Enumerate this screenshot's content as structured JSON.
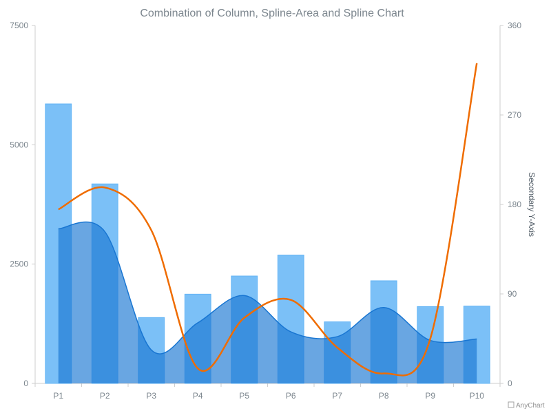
{
  "chart_data": {
    "type": "combination",
    "title": "Combination of Column, Spline-Area and Spline Chart",
    "categories": [
      "P1",
      "P2",
      "P3",
      "P4",
      "P5",
      "P6",
      "P7",
      "P8",
      "P9",
      "P10"
    ],
    "primary_y": {
      "min": 0,
      "max": 7500,
      "ticks": [
        0,
        2500,
        5000,
        7500
      ]
    },
    "secondary_y": {
      "title": "Secondary Y-Axis",
      "min": 0,
      "max": 360,
      "ticks": [
        0,
        90,
        180,
        270,
        360
      ]
    },
    "series": [
      {
        "type": "column",
        "axis": "primary",
        "values": [
          5856,
          4180,
          1380,
          1870,
          2250,
          2690,
          1290,
          2150,
          1610,
          1620
        ]
      },
      {
        "type": "spline-area",
        "axis": "primary",
        "values": [
          3240,
          3180,
          700,
          1270,
          1840,
          1080,
          980,
          1590,
          900,
          930
        ]
      },
      {
        "type": "spline",
        "axis": "secondary",
        "values": [
          175,
          197,
          154,
          15,
          66,
          84,
          36,
          10,
          45,
          322
        ]
      }
    ],
    "colors": {
      "column": "#64b5f6",
      "area": "#1976d2",
      "line": "#ef6c00"
    }
  },
  "credit": "AnyChart"
}
